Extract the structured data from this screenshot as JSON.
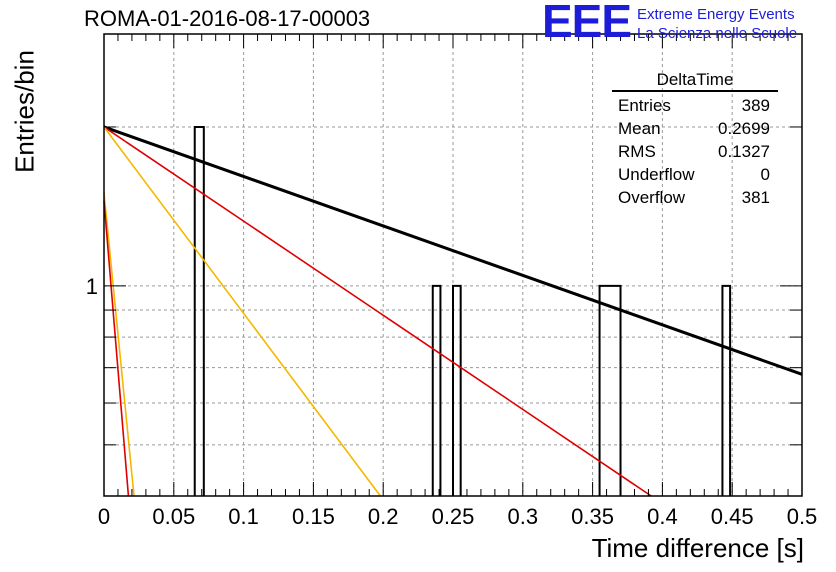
{
  "header": {
    "title": "ROMA-01-2016-08-17-00003",
    "logo_text": "EEE",
    "logo_line1": "Extreme Energy Events",
    "logo_line2": "La Scienza nelle Scuole"
  },
  "stats": {
    "title": "DeltaTime",
    "rows": [
      {
        "label": "Entries",
        "value": "389"
      },
      {
        "label": "Mean",
        "value": "0.2699"
      },
      {
        "label": "RMS",
        "value": "0.1327"
      },
      {
        "label": "Underflow",
        "value": "0"
      },
      {
        "label": "Overflow",
        "value": "381"
      }
    ]
  },
  "chart_data": {
    "type": "bar",
    "title": "ROMA-01-2016-08-17-00003",
    "xlabel": "Time difference [s]",
    "ylabel": "Entries/bin",
    "xlim": [
      0,
      0.5
    ],
    "ylim": [
      0.4,
      3.0
    ],
    "yscale": "log",
    "grid": true,
    "legend": "top-right",
    "x_ticks": [
      "0",
      "0.05",
      "0.1",
      "0.15",
      "0.2",
      "0.25",
      "0.3",
      "0.35",
      "0.4",
      "0.45",
      "0.5"
    ],
    "y_ticks": [
      "1"
    ],
    "bins": [
      {
        "x0": 0.065,
        "x1": 0.0715,
        "value": 2
      },
      {
        "x0": 0.2355,
        "x1": 0.241,
        "value": 1
      },
      {
        "x0": 0.25,
        "x1": 0.2555,
        "value": 1
      },
      {
        "x0": 0.355,
        "x1": 0.37,
        "value": 1
      },
      {
        "x0": 0.443,
        "x1": 0.4485,
        "value": 1
      }
    ],
    "fit_lines": [
      {
        "color": "#000000",
        "points": [
          [
            0.0,
            2.0
          ],
          [
            0.5,
            0.68
          ]
        ]
      },
      {
        "color": "#e00000",
        "points": [
          [
            0.0,
            2.0
          ],
          [
            0.392,
            0.4
          ]
        ]
      },
      {
        "color": "#f5b800",
        "points": [
          [
            0.0,
            2.0
          ],
          [
            0.198,
            0.4
          ]
        ]
      },
      {
        "color": "#f5b800",
        "points": [
          [
            0.0,
            1.5
          ],
          [
            0.0215,
            0.4
          ]
        ]
      },
      {
        "color": "#e00000",
        "points": [
          [
            0.0,
            1.45
          ],
          [
            0.0175,
            0.4
          ]
        ]
      }
    ]
  }
}
